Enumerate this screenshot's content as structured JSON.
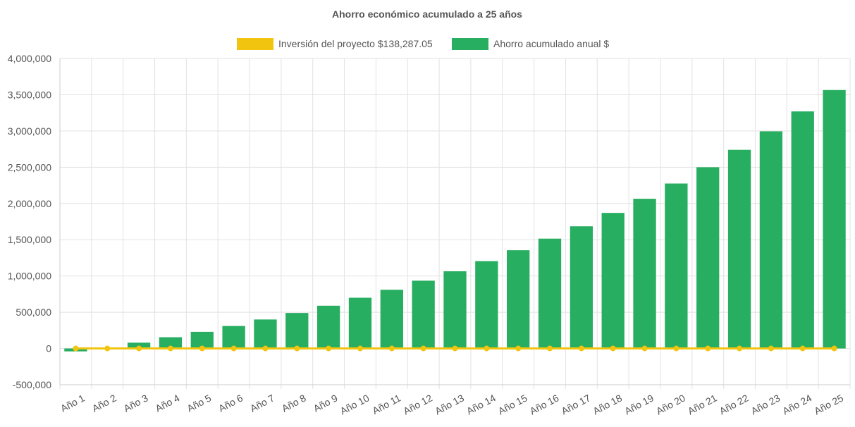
{
  "chart_data": {
    "type": "bar",
    "title": "Ahorro económico acumulado a 25 años",
    "categories": [
      "Año 1",
      "Año 2",
      "Año 3",
      "Año 4",
      "Año 5",
      "Año 6",
      "Año 7",
      "Año 8",
      "Año 9",
      "Año 10",
      "Año 11",
      "Año 12",
      "Año 13",
      "Año 14",
      "Año 15",
      "Año 16",
      "Año 17",
      "Año 18",
      "Año 19",
      "Año 20",
      "Año 21",
      "Año 22",
      "Año 23",
      "Año 24",
      "Año 25"
    ],
    "series": [
      {
        "name": "Inversión del proyecto $138,287.05",
        "type": "line",
        "color": "#f1c40f",
        "values": [
          0,
          0,
          0,
          0,
          0,
          0,
          0,
          0,
          0,
          0,
          0,
          0,
          0,
          0,
          0,
          0,
          0,
          0,
          0,
          0,
          0,
          0,
          0,
          0,
          0
        ]
      },
      {
        "name": "Ahorro acumulado anual $",
        "type": "bar",
        "color": "#27ae60",
        "values": [
          -40000,
          10000,
          80000,
          155000,
          230000,
          310000,
          400000,
          490000,
          590000,
          700000,
          810000,
          935000,
          1065000,
          1205000,
          1355000,
          1515000,
          1685000,
          1870000,
          2065000,
          2275000,
          2500000,
          2740000,
          2995000,
          3270000,
          3565000
        ]
      }
    ],
    "yticks": [
      "4,000,000",
      "3,500,000",
      "3,000,000",
      "2,500,000",
      "2,000,000",
      "1,500,000",
      "1,000,000",
      "500,000",
      "0",
      "-500,000"
    ],
    "ylim": [
      -500000,
      4000000
    ],
    "xlabel": "",
    "ylabel": "",
    "grid": true,
    "legend_position": "top"
  }
}
